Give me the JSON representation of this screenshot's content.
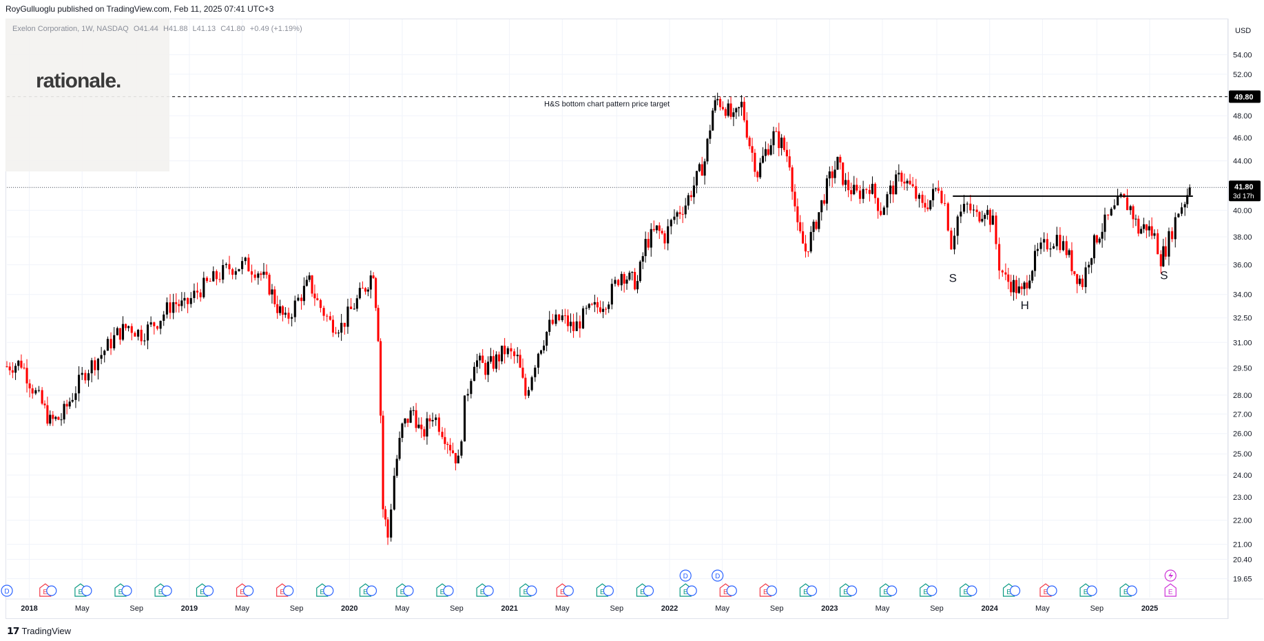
{
  "header": {
    "published": "RoyGulluoglu published on TradingView.com, Feb 11, 2025 07:41 UTC+3"
  },
  "legend": {
    "symbol": "Exelon Corporation, 1W, NASDAQ",
    "open": "O41.44",
    "high": "H41.88",
    "low": "L41.13",
    "close": "C41.80",
    "change": "+0.49 (+1.19%)"
  },
  "logo": {
    "text": "rationale."
  },
  "footer": {
    "brand": "TradingView"
  },
  "chart_data": {
    "type": "candlestick",
    "title": "Exelon Corporation, 1W, NASDAQ",
    "currency": "USD",
    "y_scale": "log",
    "ylim": [
      19.2,
      56.0
    ],
    "y_ticks": [
      "54.00",
      "52.00",
      "49.80",
      "48.00",
      "46.00",
      "44.00",
      "41.80",
      "40.00",
      "38.00",
      "36.00",
      "34.00",
      "32.50",
      "31.00",
      "29.50",
      "28.00",
      "27.00",
      "26.00",
      "25.00",
      "24.00",
      "23.00",
      "22.00",
      "21.00",
      "20.40",
      "19.65"
    ],
    "y_tick_values": [
      54,
      52,
      49.8,
      48,
      46,
      44,
      41.8,
      40,
      38,
      36,
      34,
      32.5,
      31,
      29.5,
      28,
      27,
      26,
      25,
      24,
      23,
      22,
      21,
      20.4,
      19.65
    ],
    "hidden_tick_labels": [
      "49.80",
      "41.80"
    ],
    "x_ticks": [
      {
        "label": "2018",
        "t": 2018.0,
        "bold": true
      },
      {
        "label": "May",
        "t": 2018.33,
        "bold": false
      },
      {
        "label": "Sep",
        "t": 2018.67,
        "bold": false
      },
      {
        "label": "2019",
        "t": 2019.0,
        "bold": true
      },
      {
        "label": "May",
        "t": 2019.33,
        "bold": false
      },
      {
        "label": "Sep",
        "t": 2019.67,
        "bold": false
      },
      {
        "label": "2020",
        "t": 2020.0,
        "bold": true
      },
      {
        "label": "May",
        "t": 2020.33,
        "bold": false
      },
      {
        "label": "Sep",
        "t": 2020.67,
        "bold": false
      },
      {
        "label": "2021",
        "t": 2021.0,
        "bold": true
      },
      {
        "label": "May",
        "t": 2021.33,
        "bold": false
      },
      {
        "label": "Sep",
        "t": 2021.67,
        "bold": false
      },
      {
        "label": "2022",
        "t": 2022.0,
        "bold": true
      },
      {
        "label": "May",
        "t": 2022.33,
        "bold": false
      },
      {
        "label": "Sep",
        "t": 2022.67,
        "bold": false
      },
      {
        "label": "2023",
        "t": 2023.0,
        "bold": true
      },
      {
        "label": "May",
        "t": 2023.33,
        "bold": false
      },
      {
        "label": "Sep",
        "t": 2023.67,
        "bold": false
      },
      {
        "label": "2024",
        "t": 2024.0,
        "bold": true
      },
      {
        "label": "May",
        "t": 2024.33,
        "bold": false
      },
      {
        "label": "Sep",
        "t": 2024.67,
        "bold": false
      },
      {
        "label": "2025",
        "t": 2025.0,
        "bold": true
      }
    ],
    "xlim": [
      2017.86,
      2025.4
    ],
    "price_path": [
      [
        2017.86,
        29.6
      ],
      [
        2017.95,
        29.8
      ],
      [
        2018.02,
        28.4
      ],
      [
        2018.08,
        27.5
      ],
      [
        2018.13,
        26.6
      ],
      [
        2018.2,
        26.8
      ],
      [
        2018.27,
        28.0
      ],
      [
        2018.35,
        29.3
      ],
      [
        2018.45,
        30.3
      ],
      [
        2018.55,
        31.5
      ],
      [
        2018.62,
        32.0
      ],
      [
        2018.7,
        31.5
      ],
      [
        2018.8,
        32.3
      ],
      [
        2018.9,
        33.5
      ],
      [
        2018.97,
        33.2
      ],
      [
        2019.05,
        34.2
      ],
      [
        2019.15,
        35.0
      ],
      [
        2019.25,
        35.8
      ],
      [
        2019.35,
        36.0
      ],
      [
        2019.43,
        35.6
      ],
      [
        2019.5,
        34.5
      ],
      [
        2019.55,
        33.2
      ],
      [
        2019.6,
        32.3
      ],
      [
        2019.7,
        34.0
      ],
      [
        2019.75,
        34.8
      ],
      [
        2019.8,
        33.5
      ],
      [
        2019.88,
        32.2
      ],
      [
        2019.95,
        32.0
      ],
      [
        2020.03,
        33.3
      ],
      [
        2020.1,
        34.5
      ],
      [
        2020.15,
        35.6
      ],
      [
        2020.18,
        31.5
      ],
      [
        2020.21,
        22.5
      ],
      [
        2020.24,
        21.3
      ],
      [
        2020.28,
        24.0
      ],
      [
        2020.33,
        26.3
      ],
      [
        2020.4,
        27.2
      ],
      [
        2020.45,
        25.8
      ],
      [
        2020.52,
        27.0
      ],
      [
        2020.58,
        26.2
      ],
      [
        2020.63,
        25.4
      ],
      [
        2020.68,
        24.6
      ],
      [
        2020.72,
        27.5
      ],
      [
        2020.78,
        30.0
      ],
      [
        2020.85,
        29.5
      ],
      [
        2020.9,
        29.8
      ],
      [
        2020.97,
        30.5
      ],
      [
        2021.05,
        30.0
      ],
      [
        2021.1,
        28.0
      ],
      [
        2021.18,
        30.5
      ],
      [
        2021.25,
        32.0
      ],
      [
        2021.33,
        32.5
      ],
      [
        2021.4,
        31.8
      ],
      [
        2021.48,
        32.8
      ],
      [
        2021.55,
        33.2
      ],
      [
        2021.62,
        33.8
      ],
      [
        2021.7,
        35.5
      ],
      [
        2021.75,
        35.0
      ],
      [
        2021.8,
        34.8
      ],
      [
        2021.85,
        37.5
      ],
      [
        2021.92,
        38.5
      ],
      [
        2021.97,
        38.0
      ],
      [
        2022.03,
        39.5
      ],
      [
        2022.1,
        40.5
      ],
      [
        2022.17,
        42.5
      ],
      [
        2022.22,
        44.0
      ],
      [
        2022.27,
        48.5
      ],
      [
        2022.3,
        49.5
      ],
      [
        2022.35,
        48.8
      ],
      [
        2022.4,
        47.5
      ],
      [
        2022.45,
        49.0
      ],
      [
        2022.5,
        45.5
      ],
      [
        2022.55,
        43.0
      ],
      [
        2022.6,
        44.8
      ],
      [
        2022.65,
        46.2
      ],
      [
        2022.7,
        45.5
      ],
      [
        2022.75,
        44.0
      ],
      [
        2022.8,
        38.5
      ],
      [
        2022.85,
        37.0
      ],
      [
        2022.9,
        38.5
      ],
      [
        2022.95,
        40.5
      ],
      [
        2023.0,
        42.5
      ],
      [
        2023.05,
        43.8
      ],
      [
        2023.1,
        42.0
      ],
      [
        2023.17,
        41.2
      ],
      [
        2023.25,
        42.0
      ],
      [
        2023.32,
        40.0
      ],
      [
        2023.38,
        41.5
      ],
      [
        2023.45,
        42.8
      ],
      [
        2023.52,
        41.5
      ],
      [
        2023.58,
        40.2
      ],
      [
        2023.63,
        40.8
      ],
      [
        2023.68,
        42.0
      ],
      [
        2023.72,
        40.5
      ],
      [
        2023.76,
        37.5
      ],
      [
        2023.8,
        39.5
      ],
      [
        2023.86,
        40.3
      ],
      [
        2023.92,
        39.5
      ],
      [
        2023.97,
        40.2
      ],
      [
        2024.02,
        39.0
      ],
      [
        2024.06,
        36.0
      ],
      [
        2024.1,
        35.0
      ],
      [
        2024.15,
        34.6
      ],
      [
        2024.2,
        34.0
      ],
      [
        2024.25,
        35.5
      ],
      [
        2024.3,
        36.8
      ],
      [
        2024.36,
        37.5
      ],
      [
        2024.42,
        38.0
      ],
      [
        2024.48,
        37.0
      ],
      [
        2024.53,
        35.5
      ],
      [
        2024.58,
        34.8
      ],
      [
        2024.62,
        36.5
      ],
      [
        2024.67,
        38.0
      ],
      [
        2024.72,
        39.0
      ],
      [
        2024.78,
        40.0
      ],
      [
        2024.82,
        40.8
      ],
      [
        2024.88,
        40.2
      ],
      [
        2024.93,
        38.5
      ],
      [
        2024.98,
        38.8
      ],
      [
        2025.03,
        38.0
      ],
      [
        2025.07,
        36.5
      ],
      [
        2025.1,
        37.2
      ],
      [
        2025.14,
        38.5
      ],
      [
        2025.18,
        40.0
      ],
      [
        2025.22,
        40.8
      ],
      [
        2025.25,
        41.8
      ]
    ],
    "last_price": 41.8,
    "last_price_countdown": "3d 17h",
    "annotations": [
      {
        "text": "H&S bottom chart pattern price target",
        "price": 49.8
      },
      {
        "text": "S",
        "t": 2023.77,
        "price": 35.2
      },
      {
        "text": "H",
        "t": 2024.22,
        "price": 33.4
      },
      {
        "text": "S",
        "t": 2025.09,
        "price": 35.4
      }
    ],
    "target_line": {
      "price": 49.8,
      "label": "49.80"
    },
    "neckline": {
      "price": 41.1,
      "t_start": 2023.77,
      "t_end": 2025.27
    },
    "current_line": {
      "price": 41.8
    },
    "events": [
      {
        "t": 2017.86,
        "type": "D"
      },
      {
        "t": 2018.1,
        "type": "E",
        "neg": true
      },
      {
        "t": 2018.32,
        "type": "E"
      },
      {
        "t": 2018.57,
        "type": "E"
      },
      {
        "t": 2018.82,
        "type": "E"
      },
      {
        "t": 2019.08,
        "type": "E"
      },
      {
        "t": 2019.33,
        "type": "E",
        "neg": true
      },
      {
        "t": 2019.58,
        "type": "E",
        "neg": true
      },
      {
        "t": 2019.83,
        "type": "E"
      },
      {
        "t": 2020.1,
        "type": "E"
      },
      {
        "t": 2020.33,
        "type": "E"
      },
      {
        "t": 2020.58,
        "type": "E"
      },
      {
        "t": 2020.83,
        "type": "E"
      },
      {
        "t": 2021.1,
        "type": "E"
      },
      {
        "t": 2021.33,
        "type": "E",
        "neg": true
      },
      {
        "t": 2021.58,
        "type": "E"
      },
      {
        "t": 2021.83,
        "type": "E"
      },
      {
        "t": 2022.1,
        "type": "E"
      },
      {
        "t": 2022.35,
        "type": "E",
        "neg": true
      },
      {
        "t": 2022.6,
        "type": "E",
        "neg": true
      },
      {
        "t": 2022.85,
        "type": "E"
      },
      {
        "t": 2023.1,
        "type": "E"
      },
      {
        "t": 2023.35,
        "type": "E"
      },
      {
        "t": 2023.6,
        "type": "E"
      },
      {
        "t": 2023.85,
        "type": "E"
      },
      {
        "t": 2024.12,
        "type": "E"
      },
      {
        "t": 2024.35,
        "type": "E",
        "neg": true
      },
      {
        "t": 2024.6,
        "type": "E"
      },
      {
        "t": 2024.85,
        "type": "E"
      },
      {
        "t": 2025.13,
        "type": "E",
        "purple": true
      }
    ],
    "dividend_badges": [
      {
        "t": 2022.1,
        "type": "D"
      },
      {
        "t": 2022.3,
        "type": "D"
      }
    ],
    "flash_badge": {
      "t": 2025.13
    },
    "colors": {
      "up": "#089981",
      "down": "#f23645",
      "bull_candle": "#000000",
      "bear_candle": "#ff0000",
      "event": "#089981",
      "event_neg": "#f23645",
      "event_purple": "#cc2fd6",
      "dividend": "#2962ff",
      "grid": "#f0f3fa",
      "line": "#000000"
    }
  }
}
